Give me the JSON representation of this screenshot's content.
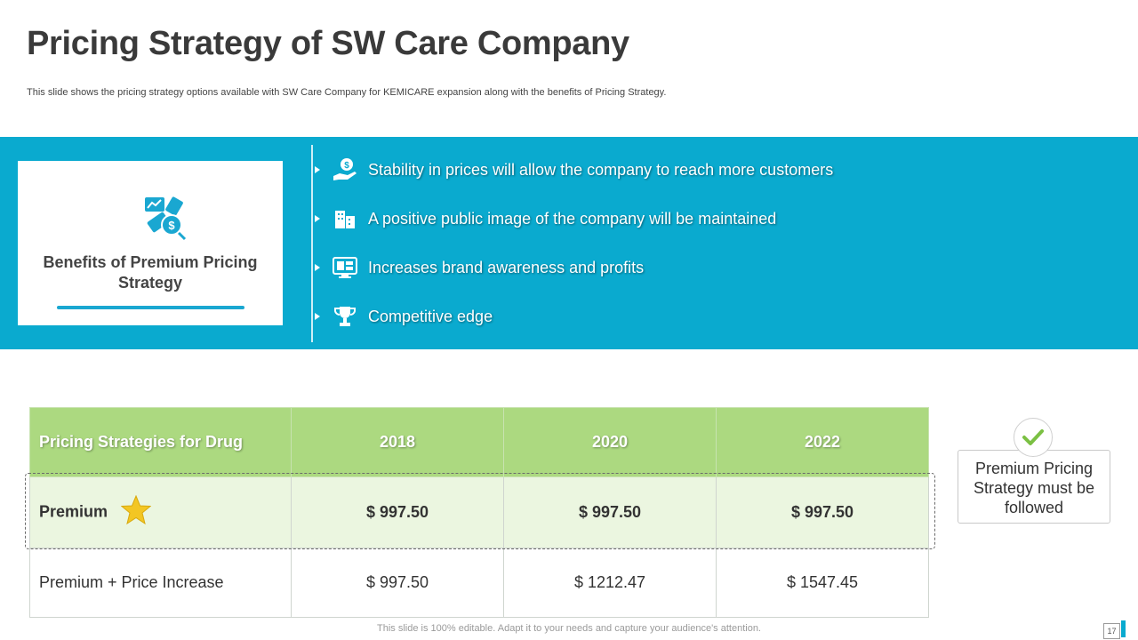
{
  "slide": {
    "title": "Pricing Strategy of SW Care Company",
    "subtitle": "This slide shows the pricing strategy options available with SW Care Company for KEMICARE  expansion along with the benefits of Pricing Strategy.",
    "footer": "This slide is 100% editable. Adapt it to your needs and capture your audience's attention.",
    "page_number": "17"
  },
  "benefits": {
    "card_title": "Benefits of Premium Pricing Strategy",
    "card_icon": "money-chart-icon",
    "items": [
      {
        "text": "Stability in prices will allow the company to reach more customers",
        "icon": "hand-coin-icon"
      },
      {
        "text": "A positive public image of the company will be maintained",
        "icon": "buildings-icon"
      },
      {
        "text": "Increases brand awareness and profits",
        "icon": "monitor-ad-icon"
      },
      {
        "text": "Competitive edge",
        "icon": "trophy-icon"
      }
    ]
  },
  "table": {
    "headers": [
      "Pricing Strategies for Drug",
      "2018",
      "2020",
      "2022"
    ],
    "rows": [
      {
        "label": "Premium",
        "values": [
          "$ 997.50",
          "$ 997.50",
          "$ 997.50"
        ],
        "highlight": true
      },
      {
        "label": "Premium + Price Increase",
        "values": [
          "$ 997.50",
          "$ 1212.47",
          "$ 1547.45"
        ],
        "highlight": false
      }
    ]
  },
  "recommendation": {
    "text": "Premium Pricing Strategy must be followed",
    "icon": "check-icon"
  },
  "colors": {
    "band": "#0aaacf",
    "table_header": "#acd980",
    "highlight_row": "#ebf6e0",
    "check": "#7bc043",
    "star": "#f3c623"
  }
}
